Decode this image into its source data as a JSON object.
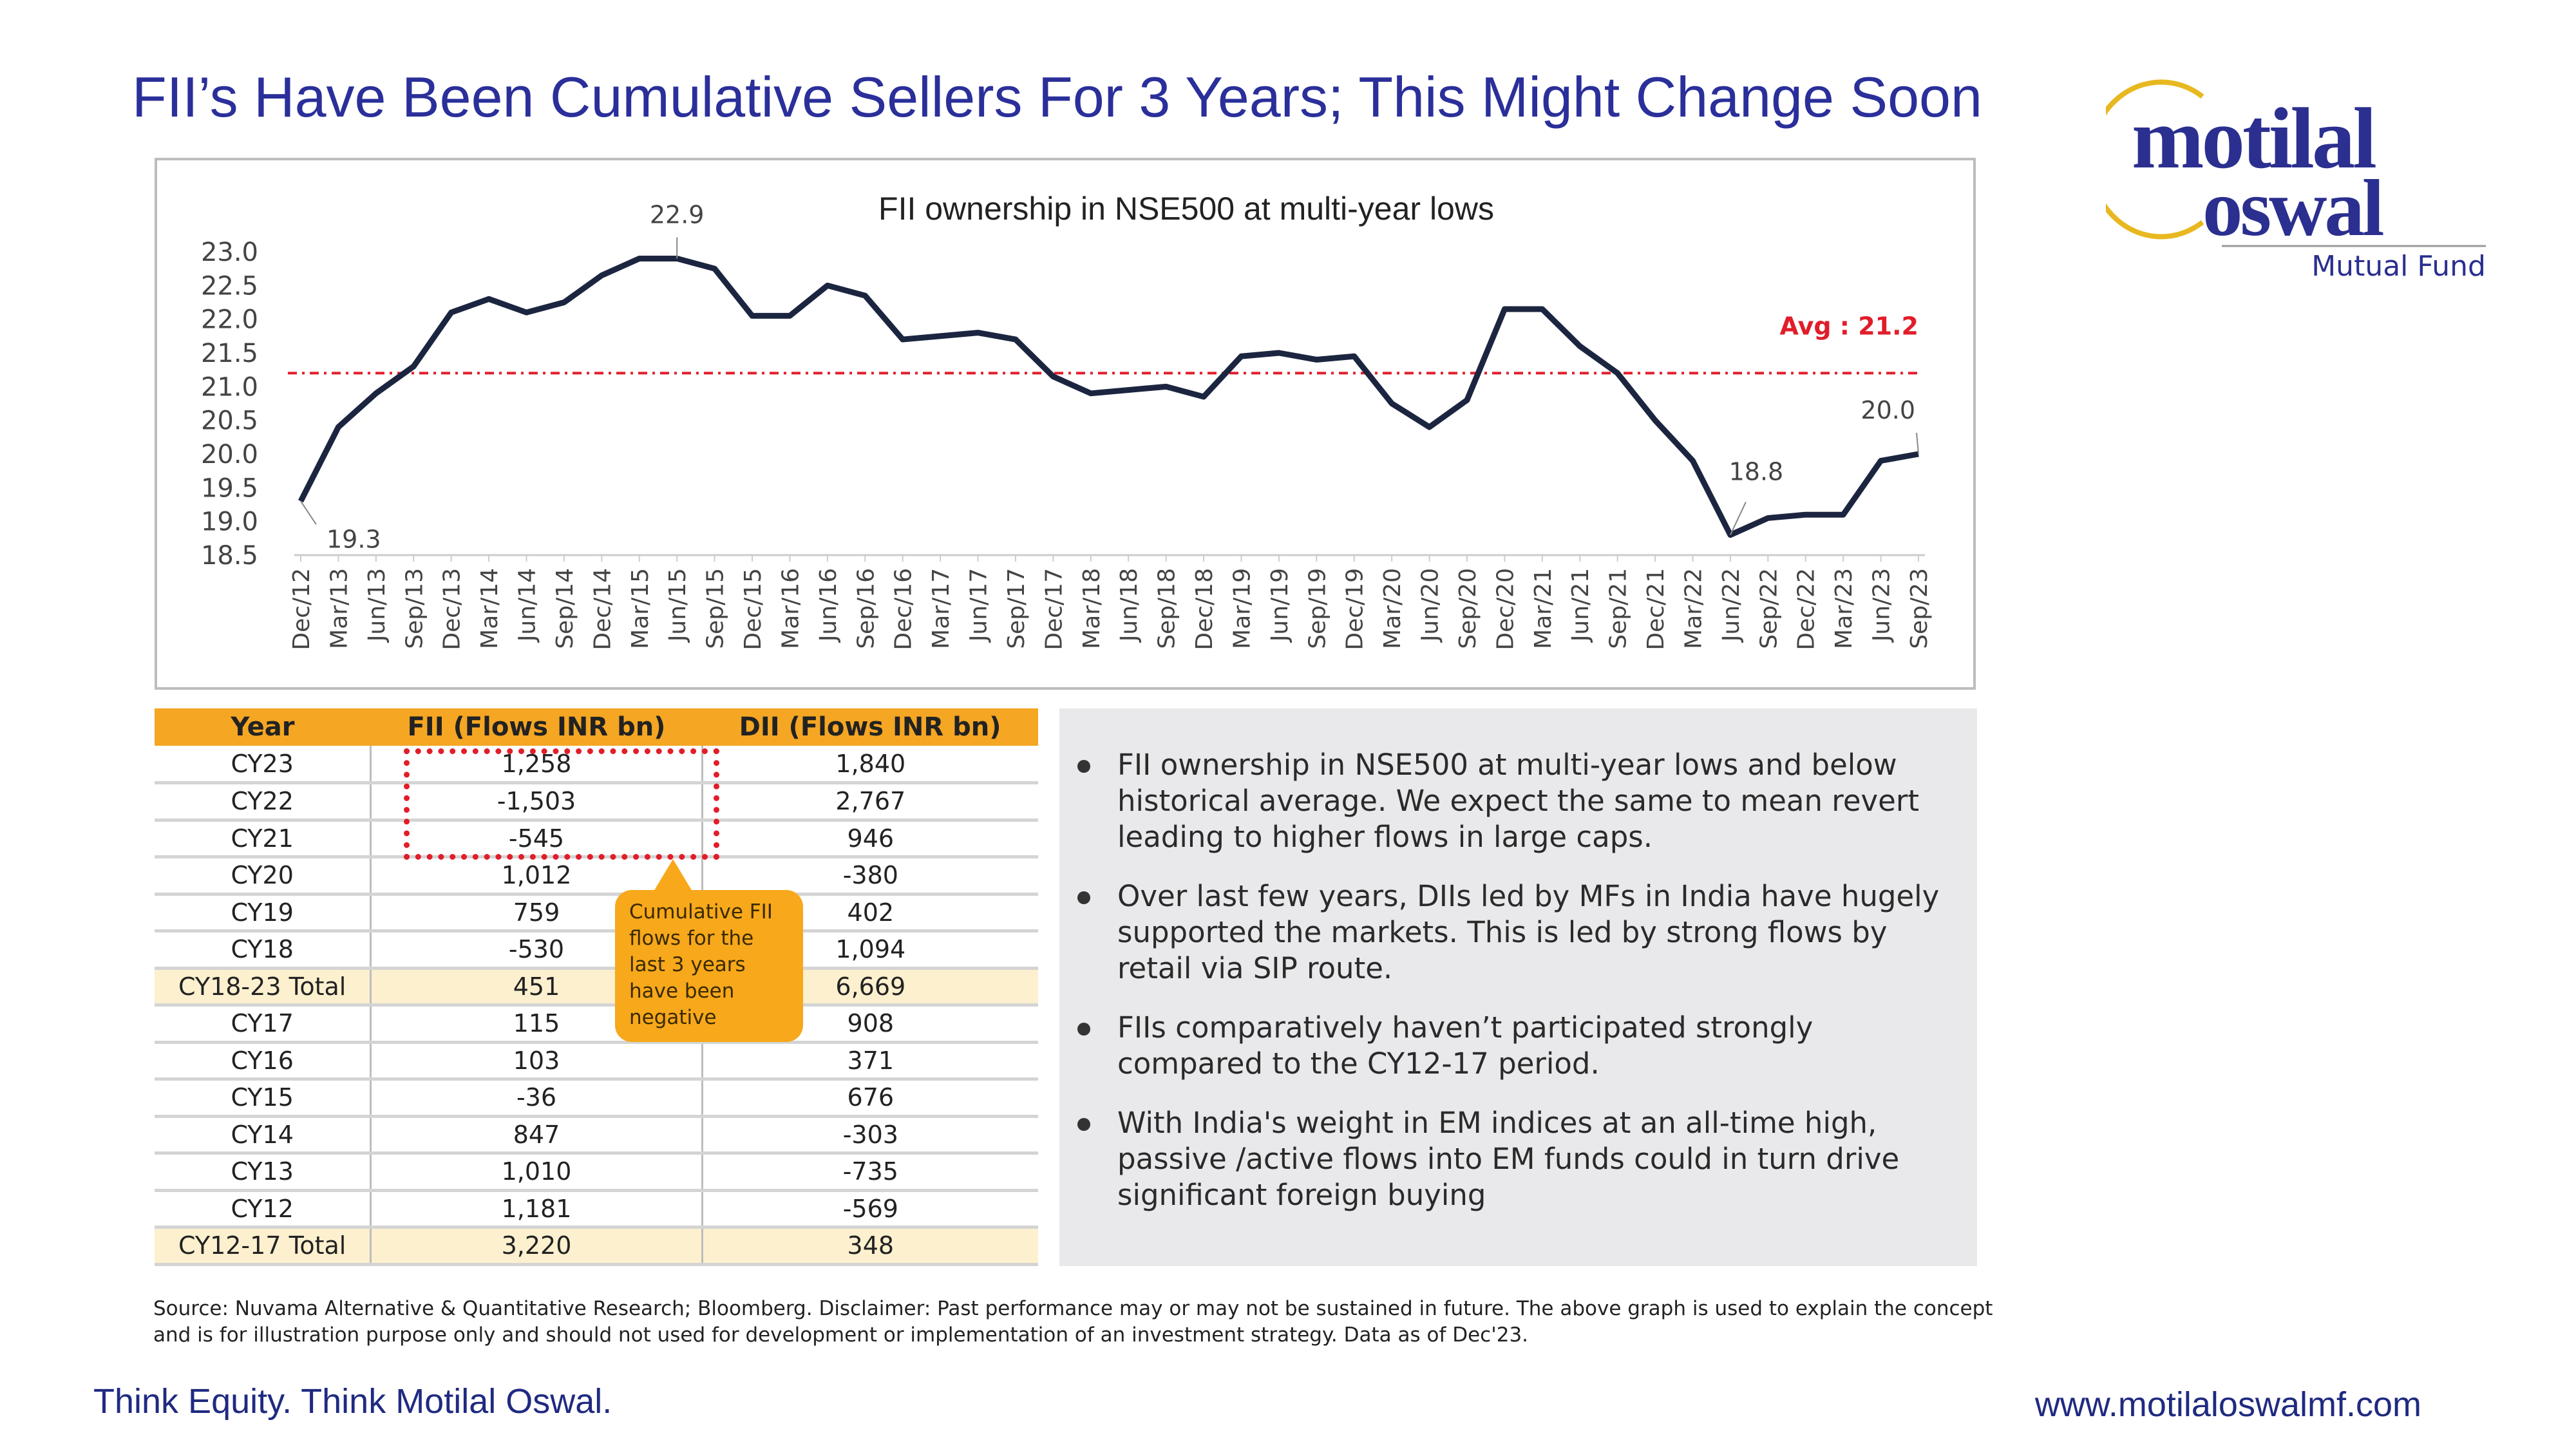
{
  "title": "FII’s Have Been Cumulative Sellers For 3 Years; This Might Change Soon",
  "logo": {
    "line1": "motilal",
    "line2": "oswal",
    "line3": "Mutual Fund"
  },
  "colors": {
    "title": "#2a2f9a",
    "line": "#1c2540",
    "avg": "#e11d2a",
    "table_header": "#f5a623",
    "callout": "#f7a81b",
    "panel": "#e9e9eb"
  },
  "chart_data": {
    "type": "line",
    "title": "FII ownership in NSE500 at multi-year lows",
    "categories": [
      "Dec/12",
      "Mar/13",
      "Jun/13",
      "Sep/13",
      "Dec/13",
      "Mar/14",
      "Jun/14",
      "Sep/14",
      "Dec/14",
      "Mar/15",
      "Jun/15",
      "Sep/15",
      "Dec/15",
      "Mar/16",
      "Jun/16",
      "Sep/16",
      "Dec/16",
      "Mar/17",
      "Jun/17",
      "Sep/17",
      "Dec/17",
      "Mar/18",
      "Jun/18",
      "Sep/18",
      "Dec/18",
      "Mar/19",
      "Jun/19",
      "Sep/19",
      "Dec/19",
      "Mar/20",
      "Jun/20",
      "Sep/20",
      "Dec/20",
      "Mar/21",
      "Jun/21",
      "Sep/21",
      "Dec/21",
      "Mar/22",
      "Jun/22",
      "Sep/22",
      "Dec/22",
      "Mar/23",
      "Jun/23",
      "Sep/23"
    ],
    "values": [
      19.3,
      20.4,
      20.9,
      21.3,
      22.1,
      22.3,
      22.1,
      22.25,
      22.65,
      22.9,
      22.9,
      22.75,
      22.05,
      22.05,
      22.5,
      22.35,
      21.7,
      21.75,
      21.8,
      21.7,
      21.15,
      20.9,
      20.95,
      21.0,
      20.85,
      21.45,
      21.5,
      21.4,
      21.45,
      20.75,
      20.4,
      20.8,
      22.15,
      22.15,
      21.6,
      21.2,
      20.5,
      19.9,
      18.8,
      19.05,
      19.1,
      19.1,
      19.9,
      20.0
    ],
    "yticks": [
      "23.0",
      "22.5",
      "22.0",
      "21.5",
      "21.0",
      "20.5",
      "20.0",
      "19.5",
      "19.0",
      "18.5"
    ],
    "ylim": [
      18.5,
      23.0
    ],
    "average": 21.2,
    "avg_label": "Avg : 21.2",
    "annotations": [
      {
        "at": "Dec/12",
        "label": "19.3"
      },
      {
        "at": "Jun/15",
        "label": "22.9"
      },
      {
        "at": "Jun/22",
        "label": "18.8"
      },
      {
        "at": "Sep/23",
        "label": "20.0"
      }
    ],
    "grid": false,
    "legend": "none"
  },
  "table": {
    "headers": [
      "Year",
      "FII (Flows INR bn)",
      "DII (Flows INR bn)"
    ],
    "rows": [
      [
        "CY23",
        "1,258",
        "1,840"
      ],
      [
        "CY22",
        "-1,503",
        "2,767"
      ],
      [
        "CY21",
        "-545",
        "946"
      ],
      [
        "CY20",
        "1,012",
        "-380"
      ],
      [
        "CY19",
        "759",
        "402"
      ],
      [
        "CY18",
        "-530",
        "1,094"
      ],
      [
        "CY18-23 Total",
        "451",
        "6,669"
      ],
      [
        "CY17",
        "115",
        "908"
      ],
      [
        "CY16",
        "103",
        "371"
      ],
      [
        "CY15",
        "-36",
        "676"
      ],
      [
        "CY14",
        "847",
        "-303"
      ],
      [
        "CY13",
        "1,010",
        "-735"
      ],
      [
        "CY12",
        "1,181",
        "-569"
      ],
      [
        "CY12-17 Total",
        "3,220",
        "348"
      ]
    ],
    "callout": "Cumulative FII flows for the last 3 years have been negative"
  },
  "bullets": [
    "FII ownership in NSE500 at multi-year lows and below historical average. We expect the same to mean revert leading to higher flows in large caps.",
    "Over last few years, DIIs led by MFs in India have hugely supported the markets. This is led by strong flows by retail via SIP route.",
    "FIIs comparatively haven’t participated strongly compared to the CY12-17 period.",
    "With India's weight in EM indices at an all-time high, passive /active flows into EM funds could in turn drive significant foreign buying"
  ],
  "source": "Source: Nuvama Alternative & Quantitative Research; Bloomberg. Disclaimer: Past performance may or may not be sustained in future. The above graph is used to explain the concept and is for illustration purpose only and should not used for development or implementation of an investment strategy. Data as of Dec'23.",
  "footer": {
    "tagline": "Think Equity. Think Motilal Oswal.",
    "url": "www.motilaloswalmf.com"
  }
}
